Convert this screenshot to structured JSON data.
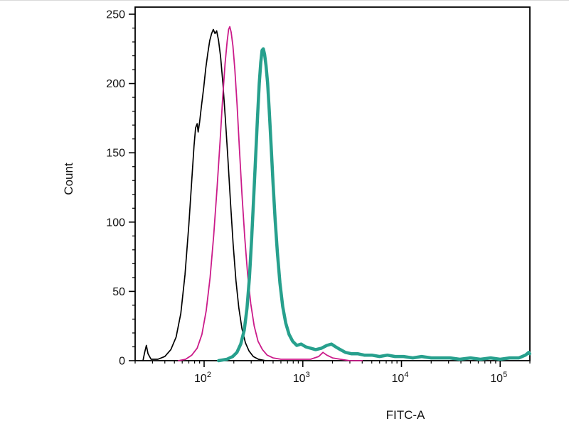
{
  "figure": {
    "background": "#ffffff",
    "frame_color": "#000000"
  },
  "chart_data": {
    "type": "line",
    "subtype": "flow-cytometry-histogram",
    "title": "",
    "xlabel": "FITC-A",
    "ylabel": "Count",
    "x_scale": "log",
    "xlim": [
      20,
      200000
    ],
    "ylim": [
      0,
      250
    ],
    "grid": false,
    "legend": "none",
    "y_ticks": [
      0,
      50,
      100,
      150,
      200,
      250
    ],
    "y_minor_step": 10,
    "x_major_ticks": [
      {
        "value": 100,
        "base": "10",
        "exp": "2"
      },
      {
        "value": 1000,
        "base": "10",
        "exp": "3"
      },
      {
        "value": 10000,
        "base": "10",
        "exp": "4"
      },
      {
        "value": 100000,
        "base": "10",
        "exp": "5"
      }
    ],
    "series": [
      {
        "name": "black-curve",
        "color": "#000000",
        "width": 1.7,
        "points": [
          [
            24,
            0
          ],
          [
            25,
            6
          ],
          [
            26,
            11
          ],
          [
            27,
            5
          ],
          [
            29,
            1
          ],
          [
            34,
            1
          ],
          [
            40,
            3
          ],
          [
            46,
            8
          ],
          [
            52,
            17
          ],
          [
            58,
            34
          ],
          [
            64,
            62
          ],
          [
            70,
            98
          ],
          [
            75,
            130
          ],
          [
            79,
            155
          ],
          [
            82,
            168
          ],
          [
            85,
            171
          ],
          [
            87,
            165
          ],
          [
            90,
            172
          ],
          [
            94,
            184
          ],
          [
            99,
            197
          ],
          [
            104,
            211
          ],
          [
            109,
            222
          ],
          [
            114,
            231
          ],
          [
            119,
            236
          ],
          [
            124,
            239
          ],
          [
            129,
            236
          ],
          [
            134,
            238
          ],
          [
            140,
            231
          ],
          [
            147,
            219
          ],
          [
            155,
            200
          ],
          [
            164,
            175
          ],
          [
            174,
            146
          ],
          [
            185,
            114
          ],
          [
            197,
            84
          ],
          [
            210,
            58
          ],
          [
            225,
            38
          ],
          [
            242,
            23
          ],
          [
            262,
            13
          ],
          [
            285,
            7
          ],
          [
            315,
            3
          ],
          [
            355,
            1
          ],
          [
            420,
            0
          ]
        ]
      },
      {
        "name": "magenta-curve",
        "color": "#cb1b8a",
        "width": 1.8,
        "points": [
          [
            55,
            0
          ],
          [
            65,
            1
          ],
          [
            75,
            4
          ],
          [
            85,
            9
          ],
          [
            95,
            19
          ],
          [
            105,
            36
          ],
          [
            115,
            60
          ],
          [
            125,
            90
          ],
          [
            135,
            124
          ],
          [
            145,
            158
          ],
          [
            154,
            189
          ],
          [
            163,
            214
          ],
          [
            171,
            230
          ],
          [
            177,
            239
          ],
          [
            182,
            241
          ],
          [
            188,
            237
          ],
          [
            196,
            227
          ],
          [
            205,
            210
          ],
          [
            216,
            184
          ],
          [
            228,
            153
          ],
          [
            242,
            120
          ],
          [
            258,
            89
          ],
          [
            276,
            62
          ],
          [
            297,
            41
          ],
          [
            322,
            25
          ],
          [
            352,
            14
          ],
          [
            390,
            8
          ],
          [
            435,
            4
          ],
          [
            500,
            2
          ],
          [
            600,
            1
          ],
          [
            750,
            1
          ],
          [
            950,
            1
          ],
          [
            1200,
            1
          ],
          [
            1450,
            3
          ],
          [
            1600,
            6
          ],
          [
            1750,
            4
          ],
          [
            2000,
            2
          ],
          [
            2400,
            1
          ],
          [
            3000,
            0
          ],
          [
            4000,
            0
          ]
        ]
      },
      {
        "name": "teal-curve",
        "color": "#27a08d",
        "width": 4.5,
        "points": [
          [
            140,
            0
          ],
          [
            170,
            1
          ],
          [
            195,
            3
          ],
          [
            215,
            6
          ],
          [
            235,
            12
          ],
          [
            255,
            22
          ],
          [
            272,
            38
          ],
          [
            288,
            60
          ],
          [
            303,
            88
          ],
          [
            318,
            118
          ],
          [
            333,
            148
          ],
          [
            348,
            176
          ],
          [
            362,
            200
          ],
          [
            375,
            215
          ],
          [
            387,
            224
          ],
          [
            398,
            225
          ],
          [
            410,
            221
          ],
          [
            424,
            213
          ],
          [
            440,
            200
          ],
          [
            457,
            181
          ],
          [
            477,
            156
          ],
          [
            499,
            129
          ],
          [
            524,
            102
          ],
          [
            553,
            78
          ],
          [
            587,
            56
          ],
          [
            626,
            39
          ],
          [
            672,
            27
          ],
          [
            726,
            19
          ],
          [
            790,
            14
          ],
          [
            870,
            11
          ],
          [
            960,
            12
          ],
          [
            1070,
            10
          ],
          [
            1200,
            9
          ],
          [
            1350,
            8
          ],
          [
            1550,
            9
          ],
          [
            1750,
            11
          ],
          [
            1950,
            12
          ],
          [
            2150,
            10
          ],
          [
            2400,
            8
          ],
          [
            2700,
            6
          ],
          [
            3100,
            5
          ],
          [
            3600,
            5
          ],
          [
            4200,
            4
          ],
          [
            5000,
            4
          ],
          [
            6000,
            3
          ],
          [
            7200,
            4
          ],
          [
            8600,
            3
          ],
          [
            10500,
            3
          ],
          [
            13000,
            2
          ],
          [
            16000,
            3
          ],
          [
            20000,
            2
          ],
          [
            25000,
            2
          ],
          [
            31000,
            2
          ],
          [
            39000,
            1
          ],
          [
            50000,
            2
          ],
          [
            63000,
            1
          ],
          [
            80000,
            2
          ],
          [
            100000,
            1
          ],
          [
            125000,
            2
          ],
          [
            155000,
            2
          ],
          [
            180000,
            4
          ],
          [
            195000,
            6
          ],
          [
            199000,
            5
          ]
        ]
      }
    ]
  }
}
